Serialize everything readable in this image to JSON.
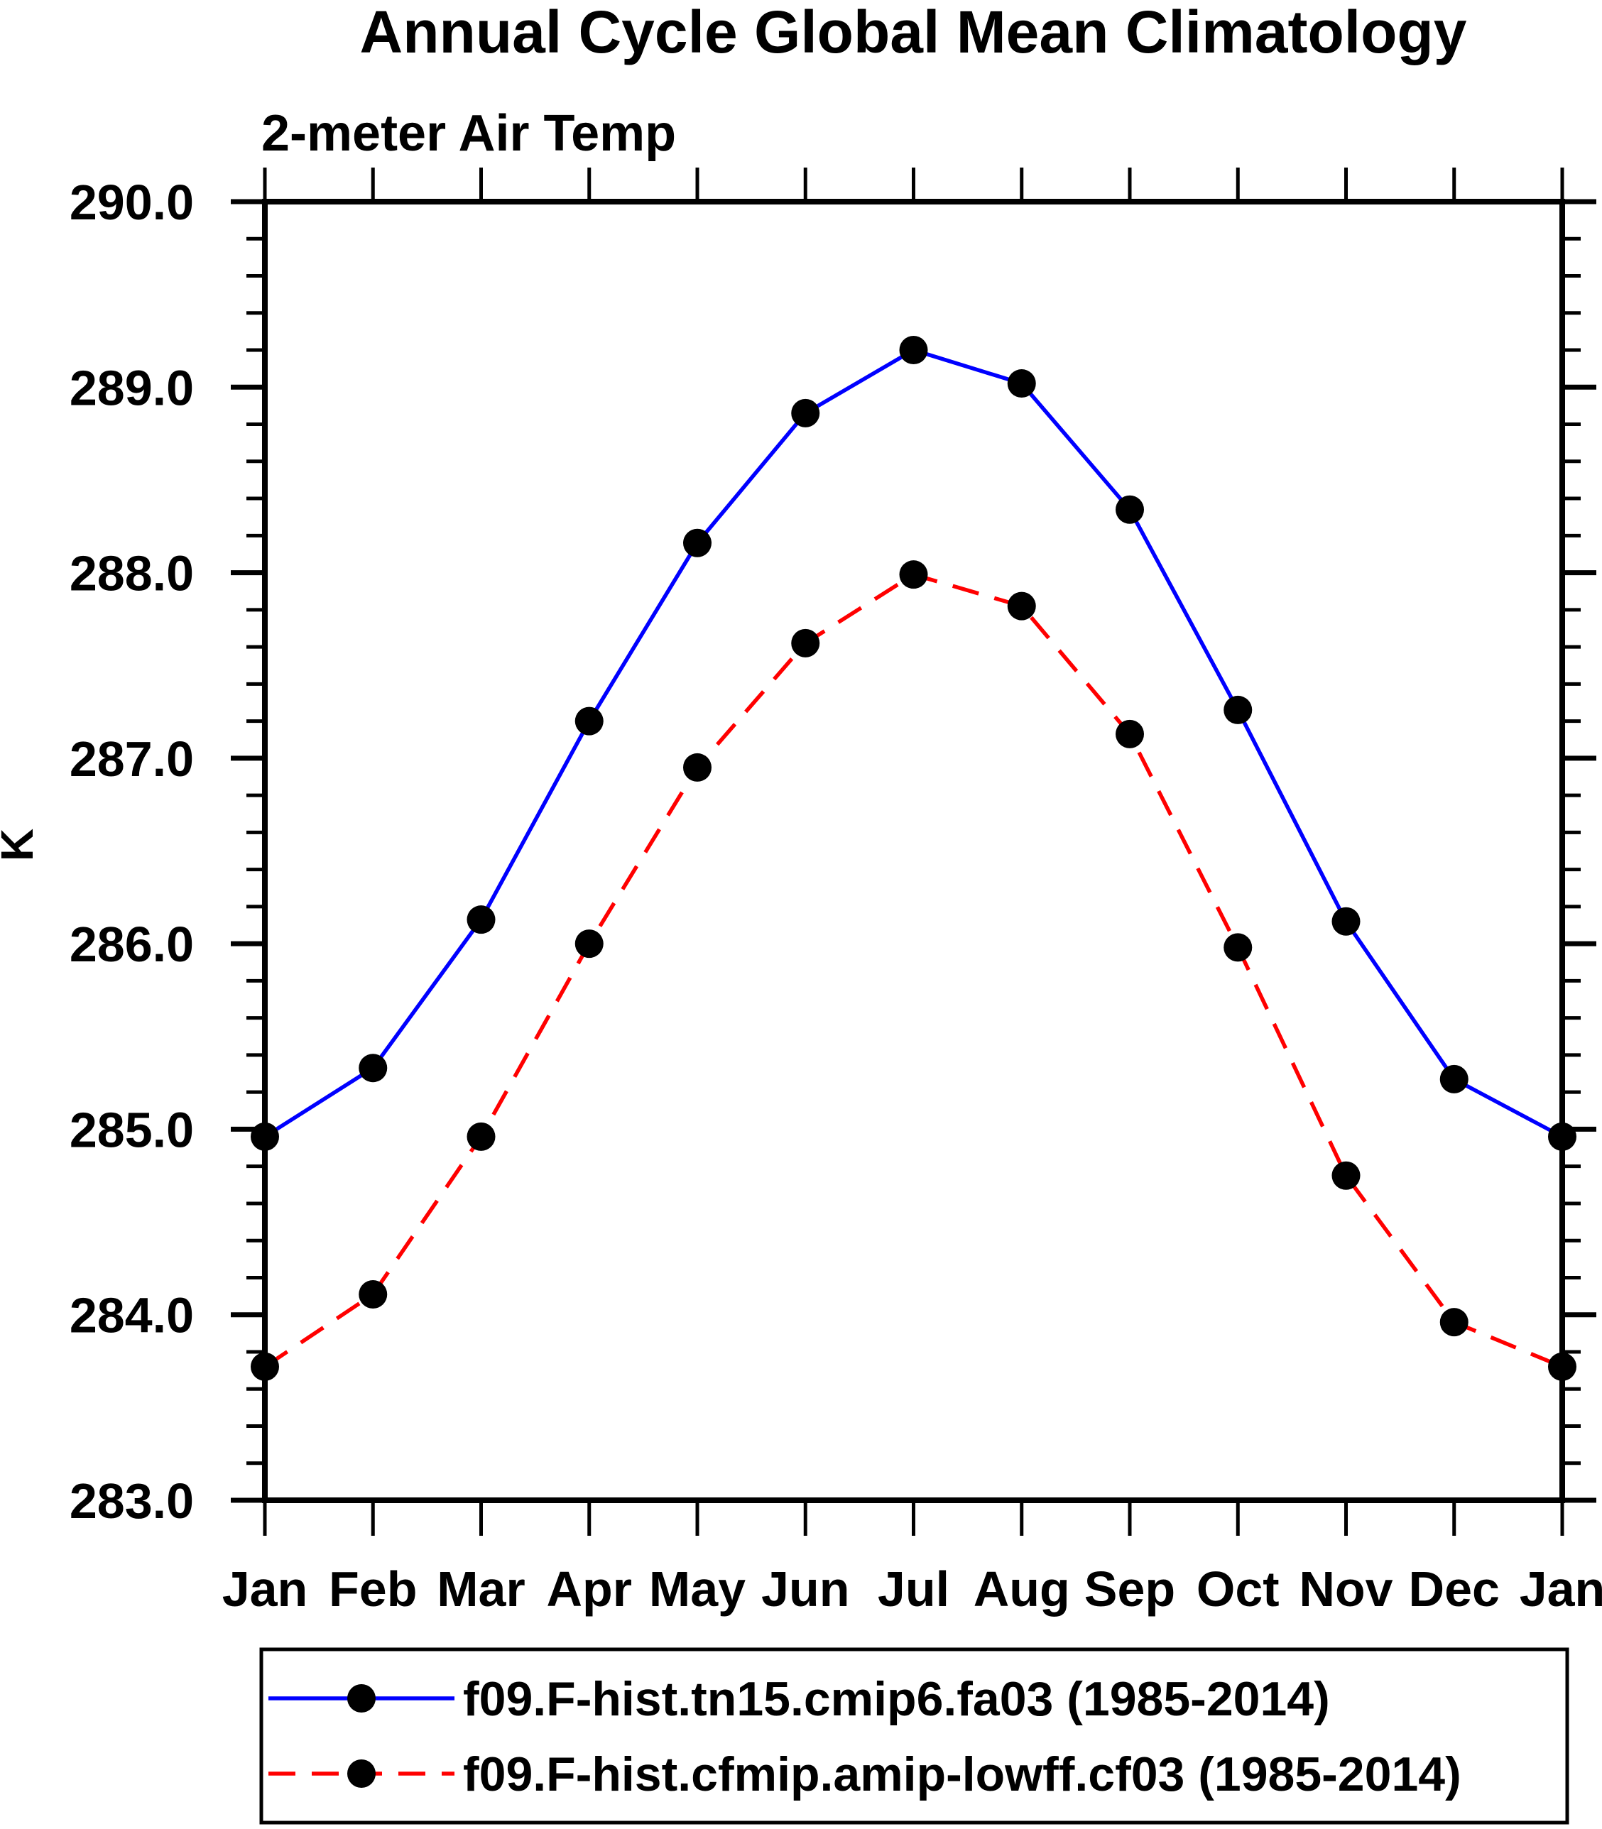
{
  "page": {
    "background": "#ffffff",
    "text_color": "#000000"
  },
  "header": {
    "title": "Annual Cycle Global Mean Climatology",
    "subtitle": "2-meter Air Temp"
  },
  "chart_data": {
    "type": "line",
    "title": "Annual Cycle Global Mean Climatology",
    "subtitle": "2-meter Air Temp",
    "xlabel": "",
    "ylabel": "K",
    "categories": [
      "Jan",
      "Feb",
      "Mar",
      "Apr",
      "May",
      "Jun",
      "Jul",
      "Aug",
      "Sep",
      "Oct",
      "Nov",
      "Dec",
      "Jan"
    ],
    "ylim": [
      283.0,
      290.0
    ],
    "ytick_major_interval": 1.0,
    "ytick_minor_interval": 0.2,
    "ytick_labels": [
      "290.0",
      "289.0",
      "288.0",
      "287.0",
      "286.0",
      "285.0",
      "284.0",
      "283.0"
    ],
    "grid": false,
    "legend_position": "bottom",
    "axis_color": "#000000",
    "marker": "filled-circle",
    "marker_color": "#000000",
    "series": [
      {
        "name": "f09.F-hist.tn15.cmip6.fa03 (1985-2014)",
        "color": "#0000ff",
        "style": "solid",
        "values": [
          284.96,
          285.33,
          286.13,
          287.2,
          288.16,
          288.86,
          289.2,
          289.02,
          288.34,
          287.26,
          286.12,
          285.27,
          284.96
        ]
      },
      {
        "name": "f09.F-hist.cfmip.amip-lowff.cf03 (1985-2014)",
        "color": "#ff0000",
        "style": "dashed",
        "values": [
          283.72,
          284.11,
          284.96,
          286.0,
          286.95,
          287.62,
          287.99,
          287.82,
          287.13,
          285.98,
          284.75,
          283.96,
          283.72
        ]
      }
    ]
  }
}
